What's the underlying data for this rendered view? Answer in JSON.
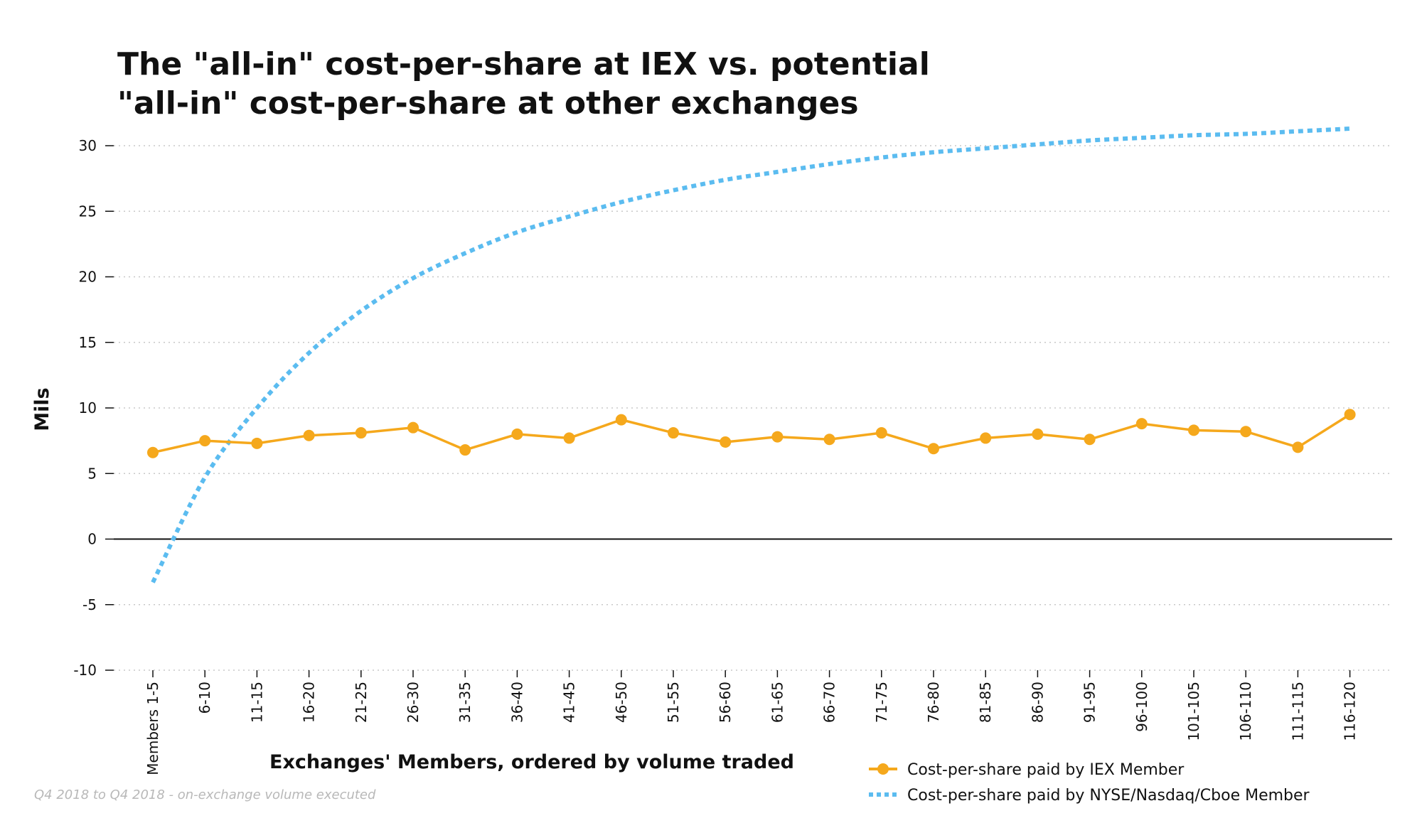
{
  "chart_data": {
    "type": "line",
    "title_lines": [
      "The \"all-in\" cost-per-share at IEX vs. potential",
      "\"all-in\" cost-per-share at other exchanges"
    ],
    "xlabel": "Exchanges' Members, ordered by volume traded",
    "ylabel": "Mils",
    "footnote": "Q4 2018 to Q4 2018 - on-exchange volume executed",
    "ylim": [
      -10,
      30
    ],
    "yticks": [
      30,
      25,
      20,
      15,
      10,
      5,
      0,
      -5,
      -10
    ],
    "grid": "horizontal dotted",
    "legend_position": "bottom-right",
    "categories": [
      "Members 1-5",
      "6-10",
      "11-15",
      "16-20",
      "21-25",
      "26-30",
      "31-35",
      "36-40",
      "41-45",
      "46-50",
      "51-55",
      "56-60",
      "61-65",
      "66-70",
      "71-75",
      "76-80",
      "81-85",
      "86-90",
      "91-95",
      "96-100",
      "101-105",
      "106-110",
      "111-115",
      "116-120"
    ],
    "series": [
      {
        "name": "Cost-per-share paid by IEX Member",
        "color": "#f5a81c",
        "style": "solid-markers",
        "values": [
          6.6,
          7.5,
          7.3,
          7.9,
          8.1,
          8.5,
          6.8,
          8.0,
          7.7,
          9.1,
          8.1,
          7.4,
          7.8,
          7.6,
          8.1,
          6.9,
          7.7,
          8.0,
          7.6,
          8.8,
          8.3,
          8.2,
          7.0,
          9.5
        ]
      },
      {
        "name": "Cost-per-share paid by NYSE/Nasdaq/Cboe Member",
        "color": "#5bbcf0",
        "style": "dashed",
        "values": [
          -3.3,
          4.7,
          10.0,
          14.2,
          17.4,
          19.9,
          21.8,
          23.4,
          24.6,
          25.7,
          26.6,
          27.4,
          28.0,
          28.6,
          29.1,
          29.5,
          29.8,
          30.1,
          30.4,
          30.6,
          30.8,
          30.9,
          31.1,
          31.3
        ]
      }
    ]
  }
}
